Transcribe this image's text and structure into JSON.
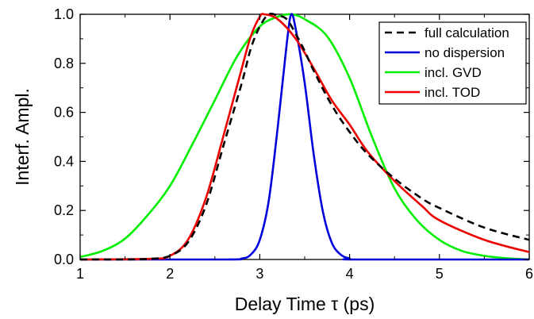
{
  "chart_data": {
    "type": "line",
    "xlabel": "Delay Time τ (ps)",
    "ylabel": "Interf. Ampl.",
    "xlim": [
      1,
      6
    ],
    "ylim": [
      0,
      1
    ],
    "x_ticks": [
      "1",
      "2",
      "3",
      "4",
      "5",
      "6"
    ],
    "y_ticks": [
      "0.0",
      "0.2",
      "0.4",
      "0.6",
      "0.8",
      "1.0"
    ],
    "grid": false,
    "legend_position": "top-right",
    "series": [
      {
        "name": "full calculation",
        "color": "#000000",
        "dash": true,
        "x": [
          1.0,
          1.5,
          1.8,
          2.0,
          2.2,
          2.4,
          2.6,
          2.8,
          2.9,
          3.0,
          3.1,
          3.2,
          3.3,
          3.4,
          3.5,
          3.6,
          3.8,
          4.0,
          4.2,
          4.5,
          4.8,
          5.0,
          5.5,
          6.0
        ],
        "y": [
          0.0,
          0.0,
          0.003,
          0.015,
          0.07,
          0.22,
          0.47,
          0.72,
          0.86,
          0.95,
          1.0,
          0.995,
          0.98,
          0.92,
          0.85,
          0.77,
          0.63,
          0.52,
          0.43,
          0.33,
          0.25,
          0.21,
          0.13,
          0.08
        ]
      },
      {
        "name": "no dispersion",
        "color": "#0000dd",
        "dash": false,
        "x": [
          1.0,
          2.6,
          2.8,
          2.9,
          3.0,
          3.1,
          3.2,
          3.3,
          3.35,
          3.4,
          3.5,
          3.6,
          3.7,
          3.8,
          3.9,
          4.0,
          4.1,
          6.0
        ],
        "y": [
          0.0,
          0.0,
          0.004,
          0.02,
          0.08,
          0.24,
          0.54,
          0.88,
          1.0,
          0.94,
          0.72,
          0.43,
          0.2,
          0.07,
          0.02,
          0.004,
          0.0,
          0.0
        ]
      },
      {
        "name": "incl. GVD",
        "color": "#00ee00",
        "dash": false,
        "x": [
          1.0,
          1.25,
          1.5,
          1.75,
          2.0,
          2.25,
          2.5,
          2.75,
          3.0,
          3.2,
          3.35,
          3.5,
          3.75,
          4.0,
          4.25,
          4.5,
          4.75,
          5.0,
          5.25,
          5.5,
          5.75,
          6.0
        ],
        "y": [
          0.01,
          0.035,
          0.085,
          0.18,
          0.3,
          0.47,
          0.65,
          0.83,
          0.95,
          0.99,
          1.0,
          0.98,
          0.91,
          0.74,
          0.5,
          0.29,
          0.16,
          0.08,
          0.035,
          0.015,
          0.005,
          0.0
        ]
      },
      {
        "name": "incl. TOD",
        "color": "#ee0000",
        "dash": false,
        "x": [
          1.0,
          1.8,
          2.0,
          2.2,
          2.4,
          2.6,
          2.8,
          2.9,
          3.0,
          3.05,
          3.2,
          3.4,
          3.6,
          3.8,
          4.0,
          4.2,
          4.5,
          4.8,
          5.0,
          5.5,
          6.0
        ],
        "y": [
          0.0,
          0.003,
          0.015,
          0.08,
          0.25,
          0.51,
          0.78,
          0.91,
          0.99,
          1.0,
          0.98,
          0.9,
          0.78,
          0.65,
          0.55,
          0.44,
          0.32,
          0.22,
          0.16,
          0.08,
          0.03
        ]
      }
    ]
  }
}
